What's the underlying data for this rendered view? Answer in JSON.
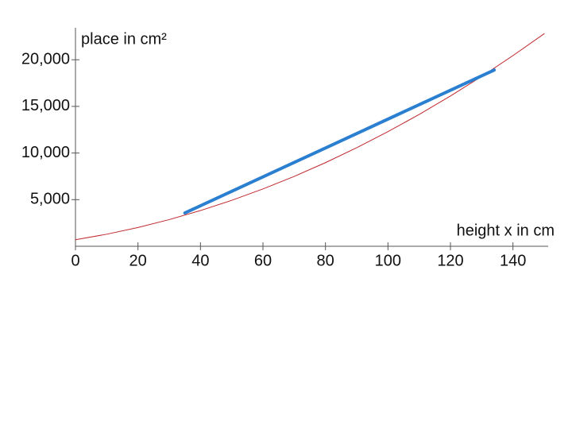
{
  "chart_data": {
    "type": "line",
    "y_label": "place in cm²",
    "x_label": "height x in cm",
    "xlim": [
      0,
      150
    ],
    "ylim": [
      0,
      23000
    ],
    "xticks": [
      0,
      20,
      40,
      60,
      80,
      100,
      120,
      140
    ],
    "yticks": [
      {
        "value": 5000,
        "label": "5,000"
      },
      {
        "value": 10000,
        "label": "10,000"
      },
      {
        "value": 15000,
        "label": "15,000"
      },
      {
        "value": 20000,
        "label": "20,000"
      }
    ],
    "series": [
      {
        "color": "#c0282d",
        "width": 1,
        "x": [
          0,
          10,
          20,
          30,
          40,
          50,
          60,
          70,
          80,
          90,
          100,
          110,
          120,
          130,
          140,
          150
        ],
        "values": [
          700,
          1294,
          2013,
          2858,
          3830,
          4925,
          6147,
          7494,
          8967,
          10566,
          12290,
          14140,
          16115,
          18216,
          20443,
          22795
        ]
      },
      {
        "color": "#2a7fd0",
        "width": 4,
        "x": [
          35,
          134
        ],
        "values": [
          3570,
          18900
        ]
      }
    ]
  }
}
